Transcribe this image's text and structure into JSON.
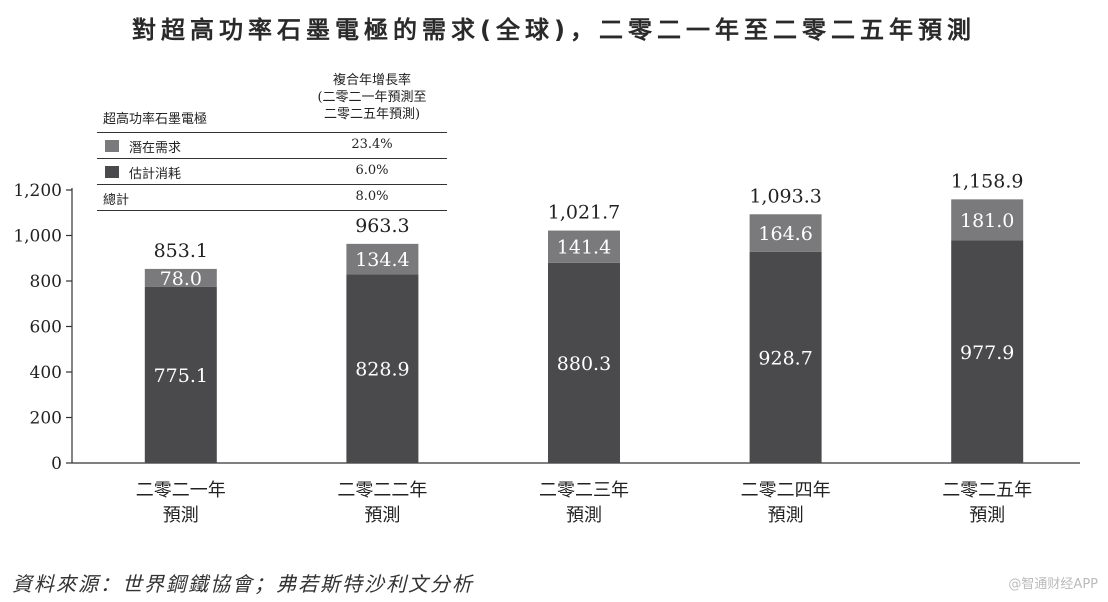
{
  "title": "對超高功率石墨電極的需求(全球)，二零二一年至二零二五年預測",
  "legend": {
    "header_left": "超高功率石墨電極",
    "header_right": [
      "複合年增長率",
      "(二零二一年預測至",
      "二零二五年預測)"
    ],
    "rows": [
      {
        "label": "潛在需求",
        "value": "23.4%",
        "color": "#7a7a7c"
      },
      {
        "label": "估計消耗",
        "value": "6.0%",
        "color": "#4a4a4c"
      },
      {
        "label": "總計",
        "value": "8.0%"
      }
    ]
  },
  "chart_data": {
    "type": "bar",
    "stacked": true,
    "categories": [
      [
        "二零二一年",
        "預測"
      ],
      [
        "二零二二年",
        "預測"
      ],
      [
        "二零二三年",
        "預測"
      ],
      [
        "二零二四年",
        "預測"
      ],
      [
        "二零二五年",
        "預測"
      ]
    ],
    "series": [
      {
        "name": "估計消耗",
        "values": [
          775.1,
          828.9,
          880.3,
          928.7,
          977.9
        ],
        "labels": [
          "775.1",
          "828.9",
          "880.3",
          "928.7",
          "977.9"
        ],
        "color": "#4a4a4c"
      },
      {
        "name": "潛在需求",
        "values": [
          78.0,
          134.4,
          141.4,
          164.6,
          181.0
        ],
        "labels": [
          "78.0",
          "134.4",
          "141.4",
          "164.6",
          "181.0"
        ],
        "color": "#7a7a7c"
      }
    ],
    "totals": [
      853.1,
      963.3,
      1021.7,
      1093.3,
      1158.9
    ],
    "total_labels": [
      "853.1",
      "963.3",
      "1,021.7",
      "1,093.3",
      "1,158.9"
    ],
    "ylim": [
      0,
      1200
    ],
    "yticks": [
      0,
      200,
      400,
      600,
      800,
      1000,
      1200
    ],
    "ytick_labels": [
      "0",
      "200",
      "400",
      "600",
      "800",
      "1,000",
      "1,200"
    ],
    "grid": false
  },
  "source": "資料來源：世界鋼鐵協會；弗若斯特沙利文分析",
  "watermark": "@智通财经APP"
}
